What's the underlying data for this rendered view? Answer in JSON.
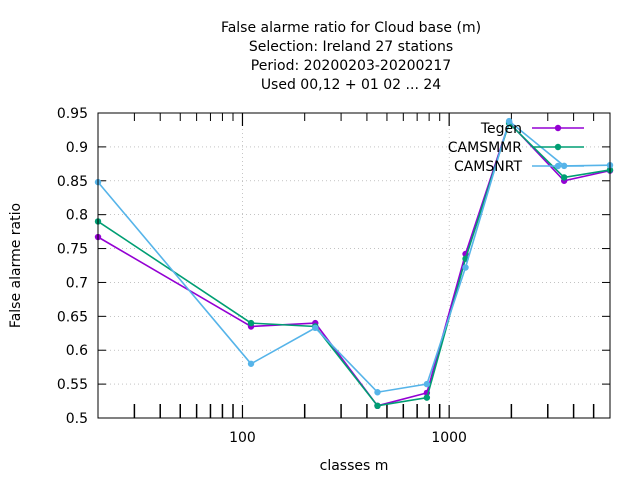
{
  "chart_data": {
    "type": "line",
    "title_lines": [
      "False alarme ratio  for Cloud base (m)",
      "Selection: Ireland     27 stations",
      "Period: 20200203-20200217",
      "Used  00,12  + 01 02 ... 24"
    ],
    "xlabel": "classes m",
    "ylabel": "False alarme ratio",
    "x_scale": "log",
    "xlim": [
      20,
      6000
    ],
    "ylim": [
      0.5,
      0.95
    ],
    "x_ticks": [
      100,
      1000
    ],
    "x_tick_labels": [
      "100",
      "1000"
    ],
    "y_ticks": [
      0.5,
      0.55,
      0.6,
      0.65,
      0.7,
      0.75,
      0.8,
      0.85,
      0.9,
      0.95
    ],
    "y_tick_labels": [
      "0.5",
      "0.55",
      "0.6",
      "0.65",
      "0.7",
      "0.75",
      "0.8",
      "0.85",
      "0.9",
      "0.95"
    ],
    "grid": true,
    "legend_position": "top-right",
    "series": [
      {
        "name": "Tegen",
        "color": "#9400d3",
        "points": [
          [
            20,
            0.767
          ],
          [
            110,
            0.635
          ],
          [
            225,
            0.64
          ],
          [
            450,
            0.518
          ],
          [
            780,
            0.537
          ],
          [
            1200,
            0.742
          ],
          [
            1950,
            0.936
          ],
          [
            3600,
            0.85
          ],
          [
            6000,
            0.865
          ]
        ]
      },
      {
        "name": "CAMSMMR",
        "color": "#009e73",
        "points": [
          [
            20,
            0.79
          ],
          [
            110,
            0.64
          ],
          [
            225,
            0.635
          ],
          [
            450,
            0.518
          ],
          [
            780,
            0.53
          ],
          [
            1200,
            0.735
          ],
          [
            1950,
            0.935
          ],
          [
            3600,
            0.855
          ],
          [
            6000,
            0.866
          ]
        ]
      },
      {
        "name": "CAMSNRT",
        "color": "#56b4e9",
        "points": [
          [
            20,
            0.848
          ],
          [
            110,
            0.58
          ],
          [
            225,
            0.633
          ],
          [
            450,
            0.538
          ],
          [
            780,
            0.55
          ],
          [
            1200,
            0.722
          ],
          [
            1950,
            0.938
          ],
          [
            3600,
            0.872
          ],
          [
            6000,
            0.873
          ]
        ]
      }
    ]
  }
}
